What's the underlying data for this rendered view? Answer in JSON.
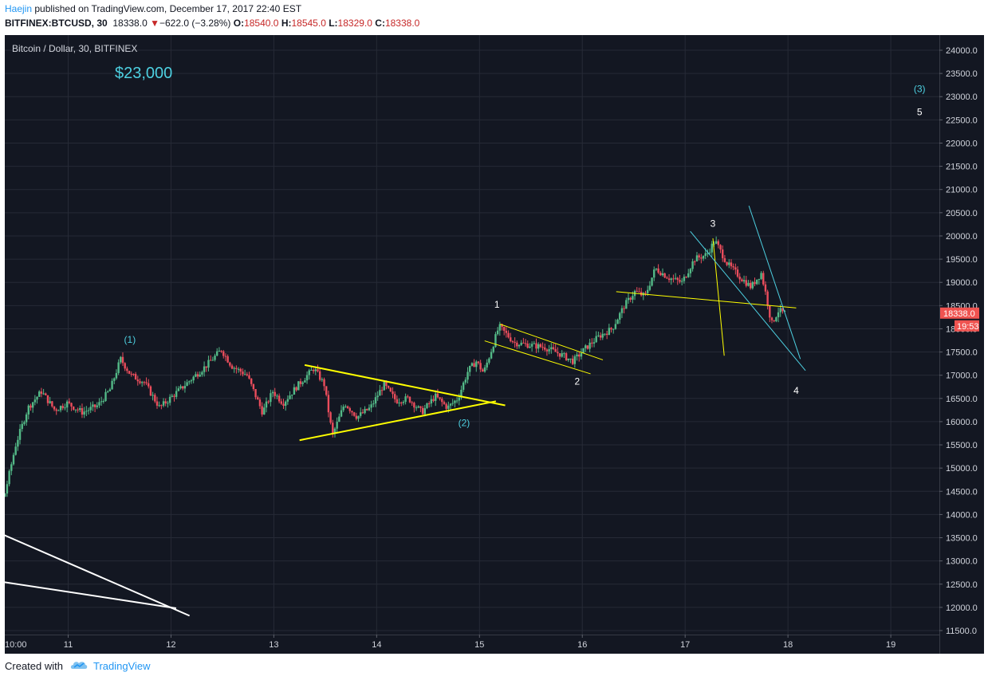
{
  "header": {
    "author": "Haejin",
    "published_text": "published on TradingView.com, December 17, 2017 22:40 EST",
    "symbol": "BITFINEX:BTCUSD, 30",
    "last": "18338.0",
    "change": "−622.0 (−3.28%)",
    "o_label": "O:",
    "o_value": "18540.0",
    "h_label": "H:",
    "h_value": "18545.0",
    "l_label": "L:",
    "l_value": "18329.0",
    "c_label": "C:",
    "c_value": "18338.0",
    "down_icon": "triangle-down-icon"
  },
  "chart_data": {
    "type": "candlestick",
    "title": "Bitcoin / Dollar, 30, BITFINEX",
    "price_target_annotation": "$23,000",
    "ylim": [
      11350,
      24350
    ],
    "y_ticks": [
      "24000.0",
      "23500.0",
      "23000.0",
      "22500.0",
      "22000.0",
      "21500.0",
      "21000.0",
      "20500.0",
      "20000.0",
      "19500.0",
      "19000.0",
      "18500.0",
      "18000.0",
      "17500.0",
      "17000.0",
      "16500.0",
      "16000.0",
      "15500.0",
      "15000.0",
      "14500.0",
      "14000.0",
      "13500.0",
      "13000.0",
      "12500.0",
      "12000.0",
      "11500.0"
    ],
    "x_ticks": [
      "10:00",
      "11",
      "12",
      "13",
      "14",
      "15",
      "16",
      "17",
      "18",
      "19"
    ],
    "current_price_label": "18338.0",
    "countdown_label": "19:53",
    "grid": true,
    "series_outline": [
      {
        "t": 10.0,
        "p": 15600
      },
      {
        "t": 10.12,
        "p": 15200
      },
      {
        "t": 10.28,
        "p": 15550
      },
      {
        "t": 10.38,
        "p": 14300
      },
      {
        "t": 10.5,
        "p": 15500
      },
      {
        "t": 10.62,
        "p": 16300
      },
      {
        "t": 10.75,
        "p": 16650
      },
      {
        "t": 10.88,
        "p": 16250
      },
      {
        "t": 11.0,
        "p": 16400
      },
      {
        "t": 11.15,
        "p": 16200
      },
      {
        "t": 11.3,
        "p": 16350
      },
      {
        "t": 11.42,
        "p": 16700
      },
      {
        "t": 11.52,
        "p": 17350
      },
      {
        "t": 11.62,
        "p": 17000
      },
      {
        "t": 11.75,
        "p": 16850
      },
      {
        "t": 11.9,
        "p": 16300
      },
      {
        "t": 12.05,
        "p": 16600
      },
      {
        "t": 12.2,
        "p": 16900
      },
      {
        "t": 12.35,
        "p": 17200
      },
      {
        "t": 12.5,
        "p": 17550
      },
      {
        "t": 12.6,
        "p": 17200
      },
      {
        "t": 12.75,
        "p": 17000
      },
      {
        "t": 12.9,
        "p": 16200
      },
      {
        "t": 13.0,
        "p": 16650
      },
      {
        "t": 13.1,
        "p": 16400
      },
      {
        "t": 13.25,
        "p": 16800
      },
      {
        "t": 13.4,
        "p": 17150
      },
      {
        "t": 13.5,
        "p": 16800
      },
      {
        "t": 13.58,
        "p": 15700
      },
      {
        "t": 13.7,
        "p": 16400
      },
      {
        "t": 13.82,
        "p": 16100
      },
      {
        "t": 13.95,
        "p": 16300
      },
      {
        "t": 14.08,
        "p": 16800
      },
      {
        "t": 14.2,
        "p": 16450
      },
      {
        "t": 14.32,
        "p": 16500
      },
      {
        "t": 14.45,
        "p": 16200
      },
      {
        "t": 14.58,
        "p": 16550
      },
      {
        "t": 14.7,
        "p": 16300
      },
      {
        "t": 14.8,
        "p": 16500
      },
      {
        "t": 14.9,
        "p": 17100
      },
      {
        "t": 14.98,
        "p": 17300
      },
      {
        "t": 15.05,
        "p": 17050
      },
      {
        "t": 15.12,
        "p": 17500
      },
      {
        "t": 15.2,
        "p": 18050
      },
      {
        "t": 15.35,
        "p": 17700
      },
      {
        "t": 15.5,
        "p": 17650
      },
      {
        "t": 15.65,
        "p": 17600
      },
      {
        "t": 15.8,
        "p": 17450
      },
      {
        "t": 15.92,
        "p": 17300
      },
      {
        "t": 16.05,
        "p": 17600
      },
      {
        "t": 16.18,
        "p": 17850
      },
      {
        "t": 16.3,
        "p": 18000
      },
      {
        "t": 16.42,
        "p": 18500
      },
      {
        "t": 16.52,
        "p": 18800
      },
      {
        "t": 16.62,
        "p": 18700
      },
      {
        "t": 16.72,
        "p": 19300
      },
      {
        "t": 16.85,
        "p": 19100
      },
      {
        "t": 16.98,
        "p": 19000
      },
      {
        "t": 17.1,
        "p": 19500
      },
      {
        "t": 17.22,
        "p": 19600
      },
      {
        "t": 17.3,
        "p": 19900
      },
      {
        "t": 17.42,
        "p": 19400
      },
      {
        "t": 17.55,
        "p": 19100
      },
      {
        "t": 17.65,
        "p": 18900
      },
      {
        "t": 17.75,
        "p": 19200
      },
      {
        "t": 17.8,
        "p": 18700
      },
      {
        "t": 17.85,
        "p": 18100
      },
      {
        "t": 17.92,
        "p": 18400
      },
      {
        "t": 17.97,
        "p": 18338
      }
    ],
    "wave_labels": [
      {
        "text": "(1)",
        "t": 11.6,
        "p": 17700,
        "color": "#4dd0e1"
      },
      {
        "text": "(2)",
        "t": 14.85,
        "p": 15900,
        "color": "#4dd0e1"
      },
      {
        "text": "(3)",
        "t": 19.28,
        "p": 23100,
        "color": "#4dd0e1"
      },
      {
        "text": "1",
        "t": 15.17,
        "p": 18450,
        "color": "#ffffff"
      },
      {
        "text": "2",
        "t": 15.95,
        "p": 16800,
        "color": "#ffffff"
      },
      {
        "text": "3",
        "t": 17.27,
        "p": 20200,
        "color": "#ffffff"
      },
      {
        "text": "4",
        "t": 18.08,
        "p": 16600,
        "color": "#ffffff"
      },
      {
        "text": "5",
        "t": 19.28,
        "p": 22600,
        "color": "#ffffff"
      }
    ],
    "trendlines": [
      {
        "color": "#ffff00",
        "width": 2,
        "p1": {
          "t": 13.3,
          "p": 17220
        },
        "p2": {
          "t": 15.25,
          "p": 16350
        }
      },
      {
        "color": "#ffff00",
        "width": 2,
        "p1": {
          "t": 13.25,
          "p": 15600
        },
        "p2": {
          "t": 15.16,
          "p": 16440
        }
      },
      {
        "color": "#ffff00",
        "width": 1,
        "p1": {
          "t": 15.2,
          "p": 18100
        },
        "p2": {
          "t": 16.2,
          "p": 17330
        }
      },
      {
        "color": "#ffff00",
        "width": 1,
        "p1": {
          "t": 15.05,
          "p": 17740
        },
        "p2": {
          "t": 16.08,
          "p": 17030
        }
      },
      {
        "color": "#ffff00",
        "width": 1,
        "p1": {
          "t": 16.33,
          "p": 18800
        },
        "p2": {
          "t": 18.08,
          "p": 18450
        }
      },
      {
        "color": "#ffff00",
        "width": 1,
        "p1": {
          "t": 17.27,
          "p": 19950
        },
        "p2": {
          "t": 17.38,
          "p": 17420
        }
      },
      {
        "color": "#4dd0e1",
        "width": 1,
        "p1": {
          "t": 17.05,
          "p": 20100
        },
        "p2": {
          "t": 18.17,
          "p": 17100
        }
      },
      {
        "color": "#4dd0e1",
        "width": 1,
        "p1": {
          "t": 17.62,
          "p": 20650
        },
        "p2": {
          "t": 18.12,
          "p": 17350
        }
      },
      {
        "color": "#ffffff",
        "width": 2,
        "p1": {
          "t": 10.0,
          "p": 13920
        },
        "p2": {
          "t": 12.18,
          "p": 11820
        }
      },
      {
        "color": "#ffffff",
        "width": 2,
        "p1": {
          "t": 10.0,
          "p": 12670
        },
        "p2": {
          "t": 12.05,
          "p": 11980
        }
      }
    ]
  },
  "footer": {
    "created_with": "Created with",
    "brand": "TradingView",
    "logo_icon": "tradingview-cloud-icon"
  }
}
